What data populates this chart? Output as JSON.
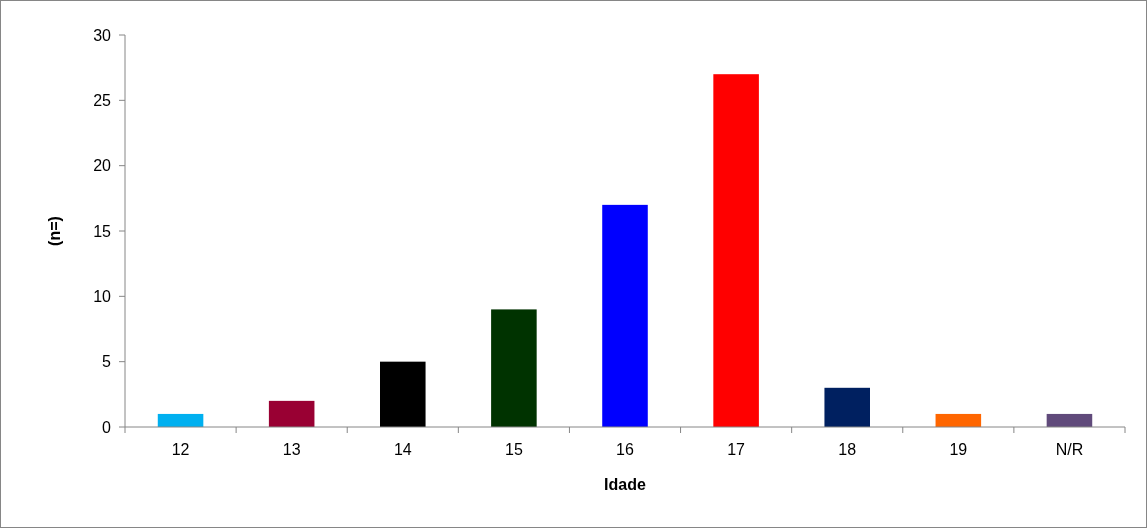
{
  "chart_data": {
    "type": "bar",
    "xlabel": "Idade",
    "ylabel": "(n=)",
    "categories": [
      "12",
      "13",
      "14",
      "15",
      "16",
      "17",
      "18",
      "19",
      "N/R"
    ],
    "values": [
      1,
      2,
      5,
      9,
      17,
      27,
      3,
      1,
      1
    ],
    "colors": [
      "#00b0f0",
      "#990033",
      "#000000",
      "#003300",
      "#0000ff",
      "#ff0000",
      "#002060",
      "#ff6600",
      "#604a7b"
    ],
    "ylim": [
      0,
      30
    ],
    "yticks": [
      0,
      5,
      10,
      15,
      20,
      25,
      30
    ],
    "grid": false
  }
}
